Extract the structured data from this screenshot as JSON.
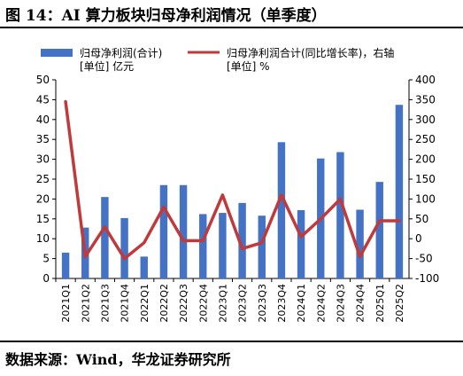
{
  "title": "图 14：AI 算力板块归母净利润情况（单季度）",
  "source": "数据来源：Wind，华龙证券研究所",
  "legend": {
    "bar_label": "归母净利润(合计)",
    "bar_unit": "[单位] 亿元",
    "line_label": "归母净利润合计(同比增长率)，右轴",
    "line_unit": "[单位] %"
  },
  "colors": {
    "bar": "#4472c4",
    "line": "#c0393b"
  },
  "chart_data": {
    "type": "bar",
    "categories": [
      "2021Q1",
      "2021Q2",
      "2021Q3",
      "2021Q4",
      "2022Q1",
      "2022Q2",
      "2022Q3",
      "2022Q4",
      "2023Q1",
      "2023Q2",
      "2023Q3",
      "2023Q4",
      "2024Q1",
      "2024Q2",
      "2024Q3",
      "2024Q4",
      "2025Q1",
      "2025Q2"
    ],
    "series": [
      {
        "name": "归母净利润(合计)",
        "type": "bar",
        "axis": "left",
        "values": [
          6.5,
          12.8,
          20.5,
          15.2,
          5.5,
          23.5,
          23.5,
          16.2,
          16.5,
          19.0,
          15.8,
          34.3,
          17.2,
          30.2,
          31.8,
          17.3,
          24.3,
          43.7
        ]
      },
      {
        "name": "归母净利润合计(同比增长率)，右轴",
        "type": "line",
        "axis": "right",
        "values": [
          345,
          -45,
          30,
          -50,
          -10,
          80,
          -5,
          -5,
          110,
          -25,
          -10,
          110,
          5,
          50,
          100,
          -45,
          45,
          45
        ]
      }
    ],
    "yleft": {
      "min": 0,
      "max": 50,
      "ticks": [
        0,
        5,
        10,
        15,
        20,
        25,
        30,
        35,
        40,
        45,
        50
      ]
    },
    "yright": {
      "min": -100,
      "max": 400,
      "ticks": [
        -100,
        -50,
        0,
        50,
        100,
        150,
        200,
        250,
        300,
        350,
        400
      ]
    },
    "legend_position": "top"
  }
}
